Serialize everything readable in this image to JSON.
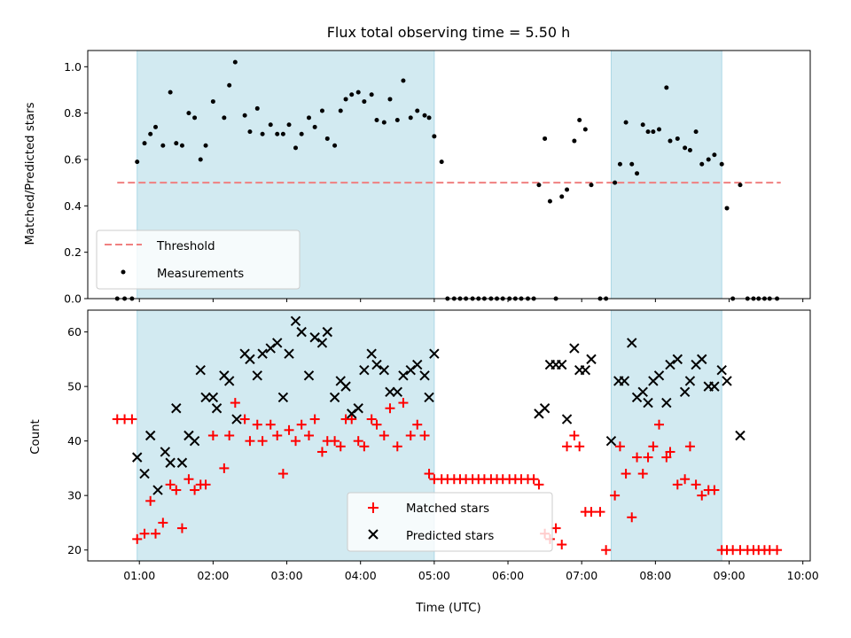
{
  "chart_data": [
    {
      "type": "scatter",
      "title": "Flux total observing time = 5.50 h",
      "xlabel": "",
      "ylabel": "Matched/Predicted stars",
      "xlim": [
        0.3,
        10.1
      ],
      "ylim": [
        0.0,
        1.07
      ],
      "grid": false,
      "legend_position": "lower left",
      "x_tick_labels": [],
      "y_ticks": [
        0.0,
        0.2,
        0.4,
        0.6,
        0.8,
        1.0
      ],
      "y_tick_labels": [
        "0.0",
        "0.2",
        "0.4",
        "0.6",
        "0.8",
        "1.0"
      ],
      "shaded_regions": [
        {
          "x": [
            0.97,
            5.0
          ]
        },
        {
          "x": [
            7.4,
            8.9
          ]
        }
      ],
      "threshold": {
        "name": "Threshold",
        "y": 0.5,
        "x": [
          0.7,
          9.7
        ],
        "color": "#f08080",
        "style": "dashed"
      },
      "series": [
        {
          "name": "Measurements",
          "marker": "dot",
          "color": "#000000",
          "x": [
            0.7,
            0.8,
            0.9,
            0.97,
            1.07,
            1.15,
            1.22,
            1.32,
            1.42,
            1.5,
            1.58,
            1.67,
            1.75,
            1.83,
            1.9,
            2.0,
            2.15,
            2.22,
            2.3,
            2.43,
            2.5,
            2.6,
            2.67,
            2.78,
            2.87,
            2.95,
            3.03,
            3.12,
            3.2,
            3.3,
            3.38,
            3.48,
            3.55,
            3.65,
            3.73,
            3.8,
            3.88,
            3.97,
            4.05,
            4.15,
            4.22,
            4.32,
            4.4,
            4.5,
            4.58,
            4.68,
            4.77,
            4.87,
            4.93,
            5.0,
            5.1,
            5.18,
            5.27,
            5.35,
            5.43,
            5.52,
            5.6,
            5.68,
            5.77,
            5.85,
            5.93,
            6.02,
            6.1,
            6.18,
            6.27,
            6.35,
            6.42,
            6.5,
            6.57,
            6.65,
            6.73,
            6.8,
            6.9,
            6.97,
            7.05,
            7.13,
            7.25,
            7.33,
            7.45,
            7.52,
            7.6,
            7.68,
            7.75,
            7.83,
            7.9,
            7.97,
            8.05,
            8.15,
            8.2,
            8.3,
            8.4,
            8.47,
            8.55,
            8.63,
            8.72,
            8.8,
            8.9,
            8.97,
            9.05,
            9.15,
            9.25,
            9.33,
            9.4,
            9.48,
            9.55,
            9.65
          ],
          "y": [
            0.0,
            0.0,
            0.0,
            0.59,
            0.67,
            0.71,
            0.74,
            0.66,
            0.89,
            0.67,
            0.66,
            0.8,
            0.78,
            0.6,
            0.66,
            0.85,
            0.78,
            0.92,
            1.02,
            0.79,
            0.72,
            0.82,
            0.71,
            0.75,
            0.71,
            0.71,
            0.75,
            0.65,
            0.71,
            0.78,
            0.74,
            0.81,
            0.69,
            0.66,
            0.81,
            0.86,
            0.88,
            0.89,
            0.85,
            0.88,
            0.77,
            0.76,
            0.86,
            0.77,
            0.94,
            0.78,
            0.81,
            0.79,
            0.78,
            0.7,
            0.59,
            0.0,
            0.0,
            0.0,
            0.0,
            0.0,
            0.0,
            0.0,
            0.0,
            0.0,
            0.0,
            0.0,
            0.0,
            0.0,
            0.0,
            0.0,
            0.49,
            0.69,
            0.42,
            0.0,
            0.44,
            0.47,
            0.68,
            0.77,
            0.73,
            0.49,
            0.0,
            0.0,
            0.5,
            0.58,
            0.76,
            0.58,
            0.54,
            0.75,
            0.72,
            0.72,
            0.73,
            0.91,
            0.68,
            0.69,
            0.65,
            0.64,
            0.72,
            0.58,
            0.6,
            0.62,
            0.58,
            0.39,
            0.0,
            0.49,
            0.0,
            0.0,
            0.0,
            0.0,
            0.0,
            0.0
          ]
        }
      ]
    },
    {
      "type": "scatter",
      "title": "",
      "xlabel": "Time (UTC)",
      "ylabel": "Count",
      "xlim": [
        0.3,
        10.1
      ],
      "ylim": [
        18,
        64
      ],
      "grid": false,
      "legend_position": "lower center",
      "x_ticks": [
        1,
        2,
        3,
        4,
        5,
        6,
        7,
        8,
        9,
        10
      ],
      "x_tick_labels": [
        "01:00",
        "02:00",
        "03:00",
        "04:00",
        "05:00",
        "06:00",
        "07:00",
        "08:00",
        "09:00",
        "10:00"
      ],
      "y_ticks": [
        20,
        30,
        40,
        50,
        60
      ],
      "y_tick_labels": [
        "20",
        "30",
        "40",
        "50",
        "60"
      ],
      "shaded_regions": [
        {
          "x": [
            0.97,
            5.0
          ]
        },
        {
          "x": [
            7.4,
            8.9
          ]
        }
      ],
      "series": [
        {
          "name": "Matched stars",
          "marker": "plus",
          "color": "#ff0000",
          "x": [
            0.7,
            0.8,
            0.9,
            0.97,
            1.07,
            1.15,
            1.22,
            1.32,
            1.42,
            1.5,
            1.58,
            1.67,
            1.75,
            1.83,
            1.9,
            2.0,
            2.15,
            2.22,
            2.3,
            2.43,
            2.5,
            2.6,
            2.67,
            2.78,
            2.87,
            2.95,
            3.03,
            3.12,
            3.2,
            3.3,
            3.38,
            3.48,
            3.55,
            3.65,
            3.73,
            3.8,
            3.88,
            3.97,
            4.05,
            4.15,
            4.22,
            4.32,
            4.4,
            4.5,
            4.58,
            4.68,
            4.77,
            4.87,
            4.93,
            5.0,
            5.1,
            5.18,
            5.27,
            5.35,
            5.43,
            5.52,
            5.6,
            5.68,
            5.77,
            5.85,
            5.93,
            6.02,
            6.1,
            6.18,
            6.27,
            6.35,
            6.42,
            6.5,
            6.57,
            6.65,
            6.73,
            6.8,
            6.9,
            6.97,
            7.05,
            7.13,
            7.25,
            7.33,
            7.45,
            7.52,
            7.6,
            7.68,
            7.75,
            7.83,
            7.9,
            7.97,
            8.05,
            8.15,
            8.2,
            8.3,
            8.4,
            8.47,
            8.55,
            8.63,
            8.72,
            8.8,
            8.9,
            8.97,
            9.05,
            9.15,
            9.25,
            9.33,
            9.4,
            9.48,
            9.55,
            9.65
          ],
          "y": [
            44,
            44,
            44,
            22,
            23,
            29,
            23,
            25,
            32,
            31,
            24,
            33,
            31,
            32,
            32,
            41,
            35,
            41,
            47,
            44,
            40,
            43,
            40,
            43,
            41,
            34,
            42,
            40,
            43,
            41,
            44,
            38,
            40,
            40,
            39,
            44,
            44,
            40,
            39,
            44,
            43,
            41,
            46,
            39,
            47,
            41,
            43,
            41,
            34,
            33,
            33,
            33,
            33,
            33,
            33,
            33,
            33,
            33,
            33,
            33,
            33,
            33,
            33,
            33,
            33,
            33,
            32,
            23,
            22,
            24,
            21,
            39,
            41,
            39,
            27,
            27,
            27,
            20,
            30,
            39,
            34,
            26,
            37,
            34,
            37,
            39,
            43,
            37,
            38,
            32,
            33,
            39,
            32,
            30,
            31,
            31,
            20,
            20,
            20,
            20,
            20,
            20,
            20,
            20,
            20,
            20
          ]
        },
        {
          "name": "Predicted stars",
          "marker": "x",
          "color": "#000000",
          "x": [
            0.97,
            1.07,
            1.15,
            1.25,
            1.35,
            1.42,
            1.5,
            1.58,
            1.67,
            1.75,
            1.83,
            1.9,
            2.0,
            2.05,
            2.15,
            2.22,
            2.32,
            2.43,
            2.5,
            2.6,
            2.67,
            2.78,
            2.87,
            2.95,
            3.03,
            3.12,
            3.2,
            3.3,
            3.38,
            3.48,
            3.55,
            3.65,
            3.73,
            3.8,
            3.88,
            3.97,
            4.05,
            4.15,
            4.22,
            4.32,
            4.4,
            4.5,
            4.58,
            4.68,
            4.77,
            4.87,
            4.93,
            5.0,
            6.42,
            6.5,
            6.57,
            6.65,
            6.73,
            6.8,
            6.9,
            6.97,
            7.05,
            7.13,
            7.4,
            7.5,
            7.58,
            7.68,
            7.75,
            7.83,
            7.9,
            7.97,
            8.05,
            8.15,
            8.2,
            8.3,
            8.4,
            8.47,
            8.55,
            8.63,
            8.72,
            8.8,
            8.9,
            8.97,
            9.15
          ],
          "y": [
            37,
            34,
            41,
            31,
            38,
            36,
            46,
            36,
            41,
            40,
            53,
            48,
            48,
            46,
            52,
            51,
            44,
            56,
            55,
            52,
            56,
            57,
            58,
            48,
            56,
            62,
            60,
            52,
            59,
            58,
            60,
            48,
            51,
            50,
            45,
            46,
            53,
            56,
            54,
            53,
            49,
            49,
            52,
            53,
            54,
            52,
            48,
            56,
            45,
            46,
            54,
            54,
            54,
            44,
            57,
            53,
            53,
            55,
            40,
            51,
            51,
            58,
            48,
            49,
            47,
            51,
            52,
            47,
            54,
            55,
            49,
            51,
            54,
            55,
            50,
            50,
            53,
            51,
            41
          ]
        }
      ]
    }
  ]
}
